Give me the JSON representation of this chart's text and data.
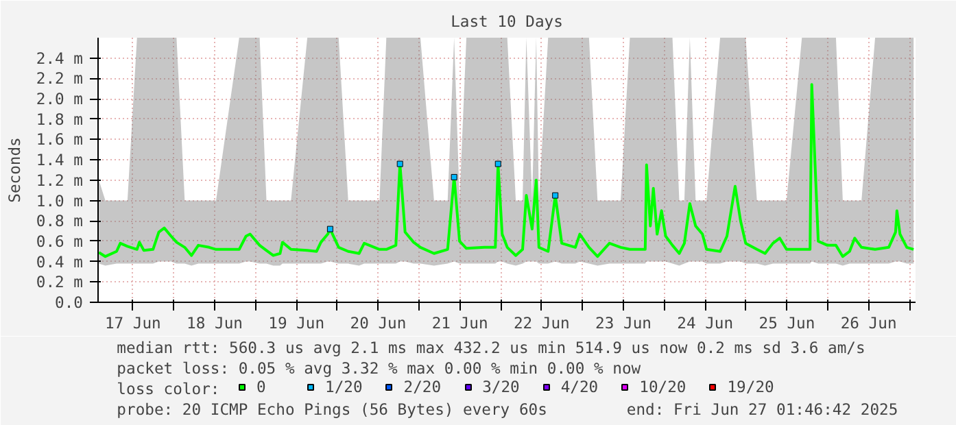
{
  "chart_data": {
    "type": "line",
    "title": "Last 10 Days",
    "ylabel": "Seconds",
    "legend_title": "loss color:",
    "legend": "bottom",
    "grid": true,
    "line_style": "solid",
    "marker": "none",
    "xlim": [
      "2025-06-17T01:46",
      "2025-06-27T01:46"
    ],
    "xticks": [
      {
        "value": "2025-06-17T12:00",
        "label": "17 Jun"
      },
      {
        "value": "2025-06-18T00:00",
        "label": null
      },
      {
        "value": "2025-06-18T12:00",
        "label": "18 Jun"
      },
      {
        "value": "2025-06-19T00:00",
        "label": null
      },
      {
        "value": "2025-06-19T12:00",
        "label": "19 Jun"
      },
      {
        "value": "2025-06-20T00:00",
        "label": null
      },
      {
        "value": "2025-06-20T12:00",
        "label": "20 Jun"
      },
      {
        "value": "2025-06-21T00:00",
        "label": null
      },
      {
        "value": "2025-06-21T12:00",
        "label": "21 Jun"
      },
      {
        "value": "2025-06-22T00:00",
        "label": null
      },
      {
        "value": "2025-06-22T12:00",
        "label": "22 Jun"
      },
      {
        "value": "2025-06-23T00:00",
        "label": null
      },
      {
        "value": "2025-06-23T12:00",
        "label": "23 Jun"
      },
      {
        "value": "2025-06-24T00:00",
        "label": null
      },
      {
        "value": "2025-06-24T12:00",
        "label": "24 Jun"
      },
      {
        "value": "2025-06-25T00:00",
        "label": null
      },
      {
        "value": "2025-06-25T12:00",
        "label": "25 Jun"
      },
      {
        "value": "2025-06-26T00:00",
        "label": null
      },
      {
        "value": "2025-06-26T12:00",
        "label": "26 Jun"
      },
      {
        "value": "2025-06-27T00:00",
        "label": null
      }
    ],
    "ylim": [
      0,
      2.6
    ],
    "yticks": [
      {
        "value": 0,
        "label": "0.0"
      },
      {
        "value": 0.2,
        "label": "0.2 m"
      },
      {
        "value": 0.4,
        "label": "0.4 m"
      },
      {
        "value": 0.6,
        "label": "0.6 m"
      },
      {
        "value": 0.8,
        "label": "0.8 m"
      },
      {
        "value": 1.0,
        "label": "1.0 m"
      },
      {
        "value": 1.2,
        "label": "1.2 m"
      },
      {
        "value": 1.4,
        "label": "1.4 m"
      },
      {
        "value": 1.6,
        "label": "1.6 m"
      },
      {
        "value": 1.8,
        "label": "1.8 m"
      },
      {
        "value": 2.0,
        "label": "2.0 m"
      },
      {
        "value": 2.2,
        "label": "2.2 m"
      },
      {
        "value": 2.4,
        "label": "2.4 m"
      }
    ],
    "series": [
      {
        "name": "0",
        "color": "#00ff00",
        "type": "line",
        "x": [
          "2025-06-17T02:00",
          "2025-06-17T03:54",
          "2025-06-17T07:12",
          "2025-06-17T08:18",
          "2025-06-17T10:24",
          "2025-06-17T13:12",
          "2025-06-17T13:54",
          "2025-06-17T15:12",
          "2025-06-17T17:54",
          "2025-06-17T19:36",
          "2025-06-17T21:12",
          "2025-06-17T23:12",
          "2025-06-18T00:48",
          "2025-06-18T03:12",
          "2025-06-18T05:12",
          "2025-06-18T07:12",
          "2025-06-18T10:24",
          "2025-06-18T12:24",
          "2025-06-18T19:12",
          "2025-06-18T21:12",
          "2025-06-18T22:24",
          "2025-06-19T01:12",
          "2025-06-19T03:12",
          "2025-06-19T05:12",
          "2025-06-19T07:12",
          "2025-06-19T07:54",
          "2025-06-19T10:24",
          "2025-06-19T15:12",
          "2025-06-19T17:54",
          "2025-06-19T19:12",
          "2025-06-19T21:12",
          "2025-06-19T21:54",
          "2025-06-20T00:24",
          "2025-06-20T03:12",
          "2025-06-20T06:24",
          "2025-06-20T07:54",
          "2025-06-20T12:24",
          "2025-06-20T14:24",
          "2025-06-20T17:12",
          "2025-06-20T18:24",
          "2025-06-20T19:54",
          "2025-06-20T22:24",
          "2025-06-21T00:24",
          "2025-06-21T04:24",
          "2025-06-21T08:24",
          "2025-06-21T10:18",
          "2025-06-21T11:54",
          "2025-06-21T13:54",
          "2025-06-21T19:12",
          "2025-06-21T22:24",
          "2025-06-21T23:12",
          "2025-06-22T00:24",
          "2025-06-22T01:54",
          "2025-06-22T04:24",
          "2025-06-22T06:24",
          "2025-06-22T07:30",
          "2025-06-22T09:12",
          "2025-06-22T10:24",
          "2025-06-22T11:12",
          "2025-06-22T13:54",
          "2025-06-22T16:00",
          "2025-06-22T17:54",
          "2025-06-22T21:54",
          "2025-06-22T23:12",
          "2025-06-23T01:54",
          "2025-06-23T04:24",
          "2025-06-23T07:54",
          "2025-06-23T11:12",
          "2025-06-23T13:54",
          "2025-06-23T18:24",
          "2025-06-23T18:48",
          "2025-06-23T19:54",
          "2025-06-23T20:48",
          "2025-06-23T21:54",
          "2025-06-23T23:12",
          "2025-06-24T00:24",
          "2025-06-24T02:24",
          "2025-06-24T04:24",
          "2025-06-24T05:54",
          "2025-06-24T07:30",
          "2025-06-24T09:12",
          "2025-06-24T11:12",
          "2025-06-24T12:24",
          "2025-06-24T16:24",
          "2025-06-24T18:24",
          "2025-06-24T20:48",
          "2025-06-24T22:24",
          "2025-06-24T23:54",
          "2025-06-25T03:12",
          "2025-06-25T05:36",
          "2025-06-25T07:54",
          "2025-06-25T09:54",
          "2025-06-25T11:54",
          "2025-06-25T16:24",
          "2025-06-25T18:48",
          "2025-06-25T19:18",
          "2025-06-25T21:12",
          "2025-06-25T23:54",
          "2025-06-26T02:24",
          "2025-06-26T04:24",
          "2025-06-26T06:24",
          "2025-06-26T07:54",
          "2025-06-26T09:54",
          "2025-06-26T13:54",
          "2025-06-26T17:54",
          "2025-06-26T19:54",
          "2025-06-26T20:18",
          "2025-06-26T21:12",
          "2025-06-26T23:12",
          "2025-06-27T01:12"
        ],
        "values": [
          0.49,
          0.45,
          0.5,
          0.58,
          0.55,
          0.52,
          0.59,
          0.51,
          0.52,
          0.69,
          0.73,
          0.65,
          0.59,
          0.54,
          0.46,
          0.56,
          0.54,
          0.52,
          0.52,
          0.65,
          0.67,
          0.56,
          0.51,
          0.46,
          0.48,
          0.59,
          0.52,
          0.51,
          0.5,
          0.59,
          0.67,
          0.72,
          0.54,
          0.5,
          0.48,
          0.58,
          0.52,
          0.52,
          0.56,
          1.36,
          0.69,
          0.59,
          0.54,
          0.48,
          0.52,
          1.23,
          0.6,
          0.53,
          0.54,
          0.54,
          1.36,
          0.67,
          0.54,
          0.46,
          0.52,
          1.05,
          0.72,
          1.2,
          0.54,
          0.5,
          1.05,
          0.58,
          0.54,
          0.67,
          0.54,
          0.45,
          0.58,
          0.54,
          0.52,
          0.52,
          1.35,
          0.75,
          1.12,
          0.67,
          0.9,
          0.65,
          0.56,
          0.48,
          0.58,
          0.97,
          0.75,
          0.67,
          0.52,
          0.5,
          0.65,
          1.14,
          0.8,
          0.58,
          0.52,
          0.48,
          0.58,
          0.63,
          0.52,
          0.52,
          0.52,
          2.14,
          0.6,
          0.56,
          0.56,
          0.45,
          0.5,
          0.63,
          0.54,
          0.52,
          0.54,
          0.69,
          0.9,
          0.67,
          0.54,
          0.52
        ],
        "lower": [
          0.38,
          0.36,
          0.38,
          0.38,
          0.38,
          0.38,
          0.38,
          0.38,
          0.38,
          0.4,
          0.4,
          0.4,
          0.38,
          0.38,
          0.36,
          0.38,
          0.38,
          0.38,
          0.38,
          0.4,
          0.4,
          0.38,
          0.38,
          0.36,
          0.36,
          0.38,
          0.38,
          0.38,
          0.38,
          0.38,
          0.4,
          0.4,
          0.38,
          0.38,
          0.36,
          0.38,
          0.38,
          0.38,
          0.38,
          0.4,
          0.4,
          0.38,
          0.38,
          0.36,
          0.38,
          0.4,
          0.38,
          0.38,
          0.38,
          0.38,
          0.4,
          0.4,
          0.38,
          0.36,
          0.38,
          0.4,
          0.4,
          0.4,
          0.38,
          0.38,
          0.4,
          0.38,
          0.38,
          0.4,
          0.38,
          0.36,
          0.38,
          0.38,
          0.38,
          0.38,
          0.4,
          0.4,
          0.4,
          0.4,
          0.4,
          0.4,
          0.38,
          0.36,
          0.38,
          0.4,
          0.4,
          0.4,
          0.38,
          0.38,
          0.4,
          0.4,
          0.4,
          0.38,
          0.38,
          0.36,
          0.38,
          0.38,
          0.38,
          0.38,
          0.38,
          0.4,
          0.38,
          0.38,
          0.38,
          0.36,
          0.38,
          0.38,
          0.38,
          0.38,
          0.38,
          0.4,
          0.4,
          0.4,
          0.38,
          0.38
        ],
        "upper": [
          1.2,
          1.0,
          1.0,
          1.0,
          1.0,
          2.6,
          2.6,
          2.6,
          2.6,
          2.6,
          2.6,
          2.6,
          2.6,
          1.0,
          1.0,
          1.0,
          1.0,
          1.0,
          2.6,
          2.6,
          2.6,
          2.6,
          1.0,
          1.0,
          1.0,
          1.0,
          1.0,
          2.6,
          2.6,
          2.6,
          2.6,
          2.6,
          2.6,
          1.0,
          1.0,
          1.0,
          1.0,
          2.6,
          2.6,
          2.6,
          2.6,
          2.6,
          2.6,
          1.0,
          1.0,
          2.6,
          1.0,
          2.6,
          2.6,
          2.6,
          2.6,
          2.6,
          2.6,
          1.0,
          1.0,
          2.6,
          1.0,
          2.6,
          1.0,
          2.6,
          2.6,
          2.6,
          2.6,
          2.6,
          2.6,
          1.0,
          1.0,
          1.0,
          2.6,
          2.6,
          2.6,
          2.6,
          2.6,
          2.6,
          2.6,
          2.6,
          2.6,
          1.0,
          1.0,
          2.6,
          1.0,
          1.0,
          1.0,
          2.6,
          2.6,
          2.6,
          2.6,
          2.6,
          1.0,
          1.0,
          1.0,
          1.0,
          1.0,
          2.6,
          2.6,
          2.6,
          2.6,
          2.6,
          2.6,
          1.0,
          1.0,
          1.0,
          1.0,
          2.6,
          2.6,
          2.6,
          2.6,
          2.6,
          2.6,
          2.6
        ]
      },
      {
        "name": "1/20",
        "color": "#00b8ff",
        "type": "scatter",
        "marker": "square",
        "x": [
          "2025-06-19T21:54",
          "2025-06-20T18:24",
          "2025-06-21T10:18",
          "2025-06-21T23:12",
          "2025-06-22T16:00"
        ],
        "values": [
          0.72,
          1.36,
          1.23,
          1.36,
          1.05
        ]
      },
      {
        "name": "2/20",
        "color": "#0059ff",
        "type": "scatter",
        "marker": "square"
      },
      {
        "name": "3/20",
        "color": "#5e00ff",
        "type": "scatter",
        "marker": "square"
      },
      {
        "name": "4/20",
        "color": "#7e00ff",
        "type": "scatter",
        "marker": "square"
      },
      {
        "name": "10/20",
        "color": "#dd00ff",
        "type": "scatter",
        "marker": "square"
      },
      {
        "name": "19/20",
        "color": "#ff0000",
        "type": "scatter",
        "marker": "square"
      }
    ],
    "annotations": [
      "median rtt:  560.3 us avg  2.1 ms max  432.2 us min  514.9 us now  0.2 ms sd  3.6  am/s",
      "packet loss: 0.05 % avg  3.32 % max  0.00 % min  0.00 % now",
      "probe:       20 ICMP Echo Pings (56 Bytes) every 60s",
      "end: Fri Jun 27 01:46:42 2025"
    ]
  }
}
